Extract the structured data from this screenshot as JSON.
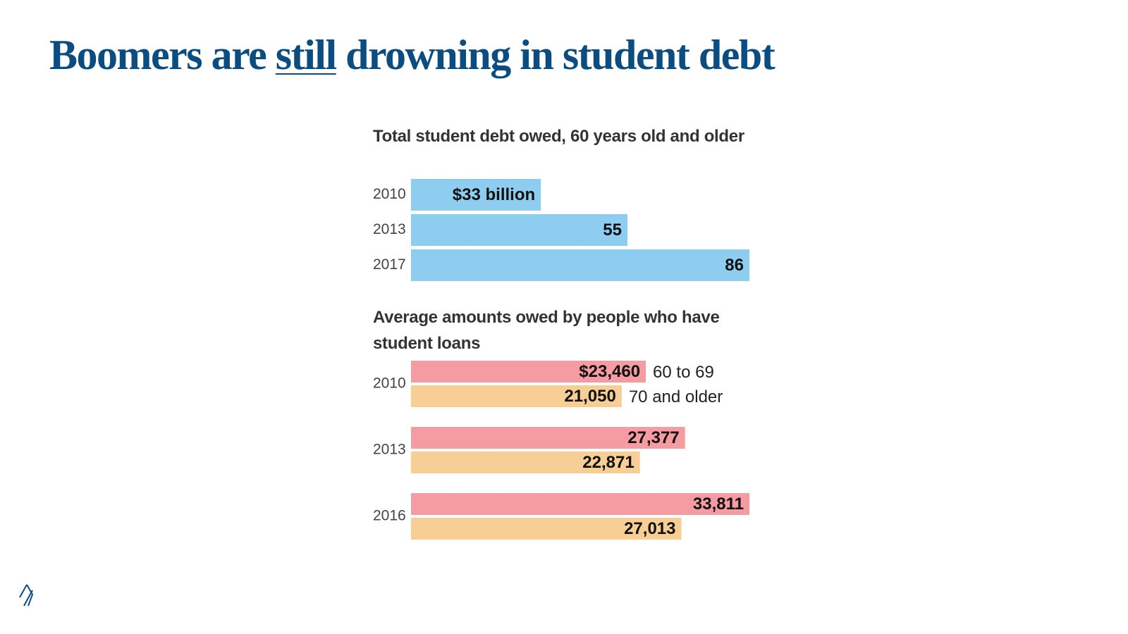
{
  "slide": {
    "title": [
      "Boomers are",
      "still",
      "drowning in student debt"
    ]
  },
  "chart_data": [
    {
      "type": "bar",
      "orientation": "horizontal",
      "title": "Total student debt owed, 60 years old and older",
      "categories": [
        "2010",
        "2013",
        "2017"
      ],
      "values": [
        33,
        55,
        86
      ],
      "value_labels": [
        "$33 billion",
        "55",
        "86"
      ],
      "color": "#8ecdf0"
    },
    {
      "type": "bar",
      "orientation": "horizontal",
      "title": "Average amounts owed by people who have student loans",
      "categories": [
        "2010",
        "2013",
        "2016"
      ],
      "series": [
        {
          "name": "60 to 69",
          "color": "#f49ca2",
          "values": [
            23460,
            27377,
            33811
          ],
          "value_labels": [
            "$23,460",
            "27,377",
            "33,811"
          ]
        },
        {
          "name": "70 and older",
          "color": "#f7cf96",
          "values": [
            21050,
            22871,
            27013
          ],
          "value_labels": [
            "21,050",
            "22,871",
            "27,013"
          ]
        }
      ]
    }
  ]
}
